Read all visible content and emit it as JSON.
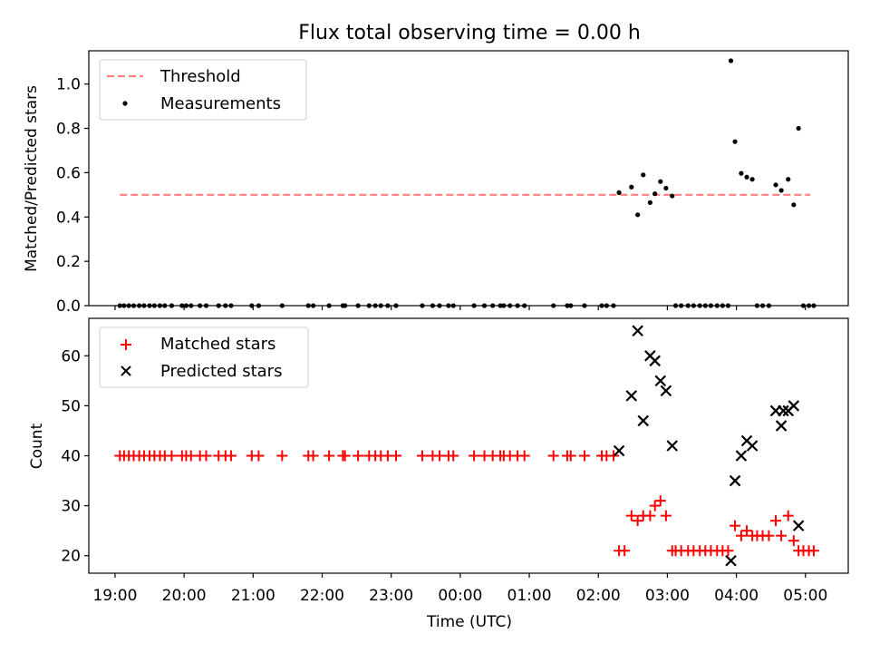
{
  "chart_data": [
    {
      "type": "scatter",
      "title": "Flux total observing time = 0.00 h",
      "xlabel": "",
      "ylabel": "Matched/Predicted stars",
      "ylim": [
        0,
        1.15
      ],
      "yticks": [
        0.0,
        0.2,
        0.4,
        0.6,
        0.8,
        1.0
      ],
      "ytick_labels": [
        "0.0",
        "0.2",
        "0.4",
        "0.6",
        "0.8",
        "1.0"
      ],
      "legend_position": "upper-left",
      "threshold": {
        "name": "Threshold",
        "value": 0.5,
        "x_start": 19.07,
        "x_end": 29.07,
        "color": "#ff7f7f"
      },
      "series": [
        {
          "name": "Measurements",
          "color": "#000000",
          "points": [
            [
              19.07,
              0
            ],
            [
              19.13,
              0
            ],
            [
              19.2,
              0
            ],
            [
              19.27,
              0
            ],
            [
              19.35,
              0
            ],
            [
              19.42,
              0
            ],
            [
              19.5,
              0
            ],
            [
              19.57,
              0
            ],
            [
              19.65,
              0
            ],
            [
              19.72,
              0
            ],
            [
              19.82,
              0
            ],
            [
              19.97,
              0
            ],
            [
              20.03,
              0
            ],
            [
              20.1,
              0
            ],
            [
              20.23,
              0
            ],
            [
              20.32,
              0
            ],
            [
              20.5,
              0
            ],
            [
              20.6,
              0
            ],
            [
              20.68,
              0
            ],
            [
              20.98,
              0
            ],
            [
              21.08,
              0
            ],
            [
              21.42,
              0
            ],
            [
              21.8,
              0
            ],
            [
              21.87,
              0
            ],
            [
              22.1,
              0
            ],
            [
              22.3,
              0
            ],
            [
              22.33,
              0
            ],
            [
              22.52,
              0
            ],
            [
              22.68,
              0
            ],
            [
              22.77,
              0
            ],
            [
              22.85,
              0
            ],
            [
              22.95,
              0
            ],
            [
              23.07,
              0
            ],
            [
              23.45,
              0
            ],
            [
              23.6,
              0
            ],
            [
              23.7,
              0
            ],
            [
              23.83,
              0
            ],
            [
              23.9,
              0
            ],
            [
              24.2,
              0
            ],
            [
              24.35,
              0
            ],
            [
              24.47,
              0
            ],
            [
              24.58,
              0
            ],
            [
              24.63,
              0
            ],
            [
              24.72,
              0
            ],
            [
              24.83,
              0
            ],
            [
              24.93,
              0
            ],
            [
              25.35,
              0
            ],
            [
              25.55,
              0
            ],
            [
              25.6,
              0
            ],
            [
              25.8,
              0
            ],
            [
              26.05,
              0
            ],
            [
              26.12,
              0
            ],
            [
              26.22,
              0
            ],
            [
              26.3,
              0.51
            ],
            [
              26.48,
              0.535
            ],
            [
              26.57,
              0.41
            ],
            [
              26.65,
              0.59
            ],
            [
              26.75,
              0.465
            ],
            [
              26.82,
              0.505
            ],
            [
              26.9,
              0.56
            ],
            [
              26.98,
              0.53
            ],
            [
              27.07,
              0.495
            ],
            [
              27.12,
              0
            ],
            [
              27.2,
              0
            ],
            [
              27.3,
              0
            ],
            [
              27.38,
              0
            ],
            [
              27.47,
              0
            ],
            [
              27.55,
              0
            ],
            [
              27.63,
              0
            ],
            [
              27.72,
              0
            ],
            [
              27.8,
              0
            ],
            [
              27.88,
              0
            ],
            [
              27.92,
              1.105
            ],
            [
              27.98,
              0.74
            ],
            [
              28.07,
              0.597
            ],
            [
              28.15,
              0.58
            ],
            [
              28.23,
              0.57
            ],
            [
              28.3,
              0
            ],
            [
              28.38,
              0
            ],
            [
              28.47,
              0
            ],
            [
              28.57,
              0.545
            ],
            [
              28.65,
              0.52
            ],
            [
              28.75,
              0.57
            ],
            [
              28.83,
              0.455
            ],
            [
              28.9,
              0.8
            ],
            [
              28.97,
              0
            ],
            [
              29.05,
              0
            ],
            [
              29.12,
              0
            ]
          ]
        }
      ]
    },
    {
      "type": "scatter",
      "title": "",
      "xlabel": "Time (UTC)",
      "ylabel": "Count",
      "xlim": [
        18.62,
        29.62
      ],
      "ylim": [
        16.5,
        67.5
      ],
      "yticks": [
        20,
        30,
        40,
        50,
        60
      ],
      "ytick_labels": [
        "20",
        "30",
        "40",
        "50",
        "60"
      ],
      "xticks": [
        19,
        20,
        21,
        22,
        23,
        24,
        25,
        26,
        27,
        28,
        29
      ],
      "xtick_labels": [
        "19:00",
        "20:00",
        "21:00",
        "22:00",
        "23:00",
        "00:00",
        "01:00",
        "02:00",
        "03:00",
        "04:00",
        "05:00"
      ],
      "legend_position": "upper-left",
      "series": [
        {
          "name": "Matched stars",
          "marker": "+",
          "color": "#ff0000",
          "points": [
            [
              19.07,
              40
            ],
            [
              19.13,
              40
            ],
            [
              19.2,
              40
            ],
            [
              19.27,
              40
            ],
            [
              19.35,
              40
            ],
            [
              19.42,
              40
            ],
            [
              19.5,
              40
            ],
            [
              19.57,
              40
            ],
            [
              19.65,
              40
            ],
            [
              19.72,
              40
            ],
            [
              19.82,
              40
            ],
            [
              19.97,
              40
            ],
            [
              20.03,
              40
            ],
            [
              20.1,
              40
            ],
            [
              20.23,
              40
            ],
            [
              20.32,
              40
            ],
            [
              20.5,
              40
            ],
            [
              20.6,
              40
            ],
            [
              20.68,
              40
            ],
            [
              20.98,
              40
            ],
            [
              21.08,
              40
            ],
            [
              21.42,
              40
            ],
            [
              21.8,
              40
            ],
            [
              21.87,
              40
            ],
            [
              22.1,
              40
            ],
            [
              22.3,
              40
            ],
            [
              22.33,
              40
            ],
            [
              22.52,
              40
            ],
            [
              22.68,
              40
            ],
            [
              22.77,
              40
            ],
            [
              22.85,
              40
            ],
            [
              22.95,
              40
            ],
            [
              23.07,
              40
            ],
            [
              23.45,
              40
            ],
            [
              23.6,
              40
            ],
            [
              23.7,
              40
            ],
            [
              23.83,
              40
            ],
            [
              23.9,
              40
            ],
            [
              24.2,
              40
            ],
            [
              24.35,
              40
            ],
            [
              24.47,
              40
            ],
            [
              24.58,
              40
            ],
            [
              24.63,
              40
            ],
            [
              24.72,
              40
            ],
            [
              24.83,
              40
            ],
            [
              24.93,
              40
            ],
            [
              25.35,
              40
            ],
            [
              25.55,
              40
            ],
            [
              25.6,
              40
            ],
            [
              25.8,
              40
            ],
            [
              26.05,
              40
            ],
            [
              26.12,
              40
            ],
            [
              26.22,
              40
            ],
            [
              26.3,
              21
            ],
            [
              26.38,
              21
            ],
            [
              26.48,
              28
            ],
            [
              26.57,
              27
            ],
            [
              26.65,
              28
            ],
            [
              26.75,
              28
            ],
            [
              26.82,
              30
            ],
            [
              26.9,
              31
            ],
            [
              26.98,
              28
            ],
            [
              27.07,
              21
            ],
            [
              27.12,
              21
            ],
            [
              27.2,
              21
            ],
            [
              27.3,
              21
            ],
            [
              27.38,
              21
            ],
            [
              27.47,
              21
            ],
            [
              27.55,
              21
            ],
            [
              27.63,
              21
            ],
            [
              27.72,
              21
            ],
            [
              27.8,
              21
            ],
            [
              27.88,
              21
            ],
            [
              27.98,
              26
            ],
            [
              28.07,
              24
            ],
            [
              28.15,
              25
            ],
            [
              28.23,
              24
            ],
            [
              28.3,
              24
            ],
            [
              28.38,
              24
            ],
            [
              28.47,
              24
            ],
            [
              28.57,
              27
            ],
            [
              28.65,
              24
            ],
            [
              28.75,
              28
            ],
            [
              28.83,
              23
            ],
            [
              28.9,
              21
            ],
            [
              28.97,
              21
            ],
            [
              29.05,
              21
            ],
            [
              29.12,
              21
            ]
          ]
        },
        {
          "name": "Predicted stars",
          "marker": "x",
          "color": "#000000",
          "points": [
            [
              26.3,
              41
            ],
            [
              26.48,
              52
            ],
            [
              26.57,
              65
            ],
            [
              26.65,
              47
            ],
            [
              26.75,
              60
            ],
            [
              26.82,
              59
            ],
            [
              26.9,
              55
            ],
            [
              26.98,
              53
            ],
            [
              27.07,
              42
            ],
            [
              27.92,
              19
            ],
            [
              27.98,
              35
            ],
            [
              28.07,
              40
            ],
            [
              28.15,
              43
            ],
            [
              28.23,
              42
            ],
            [
              28.57,
              49
            ],
            [
              28.65,
              46
            ],
            [
              28.68,
              49
            ],
            [
              28.75,
              49
            ],
            [
              28.83,
              50
            ],
            [
              28.9,
              26
            ]
          ]
        }
      ]
    }
  ]
}
